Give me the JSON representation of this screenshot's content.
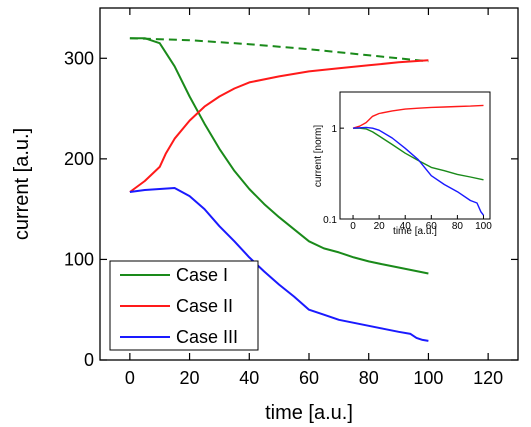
{
  "chart_data": [
    {
      "type": "line",
      "xlabel": "time [a.u.]",
      "ylabel": "current [a.u.]",
      "xlim": [
        -10,
        130
      ],
      "ylim": [
        0,
        350
      ],
      "xticks": [
        0,
        20,
        40,
        60,
        80,
        100,
        120
      ],
      "yticks": [
        0,
        100,
        200,
        300
      ],
      "grid": false,
      "legend": "bottom-left",
      "series": [
        {
          "name": "Case I",
          "color": "#1a8a1a",
          "x": [
            0,
            5,
            10,
            15,
            20,
            25,
            30,
            35,
            40,
            45,
            50,
            55,
            60,
            65,
            70,
            75,
            80,
            85,
            90,
            95,
            100
          ],
          "y": [
            320,
            320,
            315,
            292,
            262,
            235,
            210,
            188,
            170,
            155,
            142,
            130,
            118,
            111,
            107,
            102,
            98,
            95,
            92,
            89,
            86
          ]
        },
        {
          "name": "Case I (dashed)",
          "color": "#1a8a1a",
          "dashed": true,
          "x": [
            0,
            20,
            40,
            60,
            80,
            100
          ],
          "y": [
            320,
            318,
            314,
            309,
            303,
            297
          ]
        },
        {
          "name": "Case II",
          "color": "#ff1a1a",
          "x": [
            0,
            5,
            10,
            12,
            15,
            20,
            25,
            30,
            35,
            40,
            50,
            60,
            70,
            80,
            90,
            100
          ],
          "y": [
            167,
            178,
            192,
            205,
            220,
            238,
            252,
            262,
            270,
            276,
            282,
            287,
            290,
            293,
            296,
            298
          ]
        },
        {
          "name": "Case III",
          "color": "#1a1aff",
          "x": [
            0,
            5,
            10,
            15,
            20,
            25,
            30,
            35,
            40,
            45,
            50,
            55,
            60,
            65,
            70,
            75,
            80,
            85,
            90,
            94,
            96,
            98,
            100
          ],
          "y": [
            167,
            169,
            170,
            171,
            163,
            150,
            133,
            118,
            102,
            88,
            75,
            63,
            50,
            45,
            40,
            37,
            34,
            31,
            28,
            26,
            22,
            20,
            19
          ]
        }
      ]
    },
    {
      "type": "line",
      "xlabel": "time [a.u.]",
      "ylabel": "current [norm]",
      "xlim": [
        -10,
        105
      ],
      "ylim": [
        0.1,
        2.5
      ],
      "log_y": true,
      "xticks": [
        0,
        20,
        40,
        60,
        80,
        100
      ],
      "yticks": [
        0.1,
        1
      ],
      "grid": false,
      "series": [
        {
          "name": "Case I",
          "color": "#1a8a1a",
          "x": [
            0,
            5,
            10,
            15,
            20,
            30,
            40,
            50,
            60,
            70,
            80,
            90,
            100
          ],
          "y": [
            1.0,
            1.0,
            0.98,
            0.91,
            0.82,
            0.66,
            0.53,
            0.44,
            0.37,
            0.34,
            0.31,
            0.29,
            0.27
          ]
        },
        {
          "name": "Case II",
          "color": "#ff1a1a",
          "x": [
            0,
            5,
            10,
            15,
            20,
            30,
            40,
            50,
            60,
            70,
            80,
            90,
            100
          ],
          "y": [
            1.0,
            1.05,
            1.15,
            1.35,
            1.45,
            1.55,
            1.62,
            1.66,
            1.69,
            1.71,
            1.73,
            1.75,
            1.78
          ]
        },
        {
          "name": "Case III",
          "color": "#1a1aff",
          "x": [
            0,
            5,
            10,
            15,
            20,
            30,
            40,
            50,
            60,
            70,
            80,
            90,
            95,
            98,
            100
          ],
          "y": [
            1.0,
            1.01,
            1.02,
            1.0,
            0.95,
            0.78,
            0.6,
            0.45,
            0.3,
            0.24,
            0.2,
            0.16,
            0.15,
            0.12,
            0.11
          ]
        }
      ]
    }
  ]
}
